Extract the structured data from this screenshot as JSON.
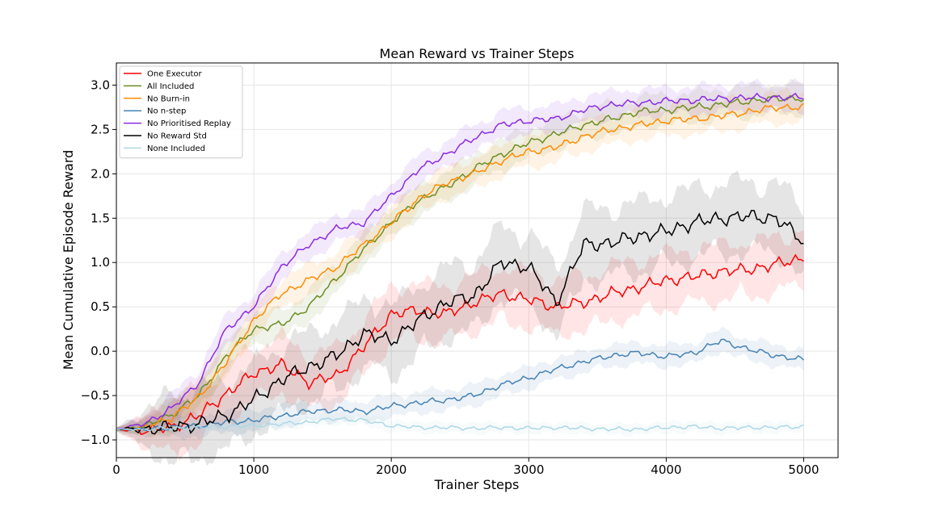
{
  "chart_data": {
    "type": "line",
    "title": "Mean Reward vs Trainer Steps",
    "xlabel": "Trainer Steps",
    "ylabel": "Mean Cumulative Episode Reward",
    "xlim": [
      0,
      5250
    ],
    "ylim": [
      -1.2,
      3.25
    ],
    "xticks": [
      0,
      1000,
      2000,
      3000,
      4000,
      5000
    ],
    "yticks": [
      -1.0,
      -0.5,
      0.0,
      0.5,
      1.0,
      1.5,
      2.0,
      2.5,
      3.0
    ],
    "grid": true,
    "legend_position": "top-left",
    "series": [
      {
        "name": "One Executor",
        "color": "#ff0000",
        "band": 0.35,
        "x": [
          0,
          200,
          400,
          600,
          800,
          1000,
          1200,
          1400,
          1600,
          1800,
          2000,
          2200,
          2400,
          2600,
          2800,
          3000,
          3200,
          3400,
          3600,
          3800,
          4000,
          4200,
          4400,
          4600,
          4800,
          5000
        ],
        "y": [
          -0.88,
          -0.9,
          -0.86,
          -0.72,
          -0.48,
          -0.25,
          -0.15,
          -0.35,
          -0.28,
          0.05,
          0.42,
          0.46,
          0.42,
          0.55,
          0.65,
          0.58,
          0.5,
          0.55,
          0.65,
          0.72,
          0.8,
          0.84,
          0.9,
          0.92,
          0.98,
          1.05
        ]
      },
      {
        "name": "All Included",
        "color": "#6b8e23",
        "band": 0.18,
        "x": [
          0,
          200,
          400,
          600,
          800,
          1000,
          1200,
          1400,
          1600,
          1800,
          2000,
          2200,
          2400,
          2600,
          2800,
          3000,
          3200,
          3400,
          3600,
          3800,
          4000,
          4200,
          4400,
          4600,
          4800,
          5000
        ],
        "y": [
          -0.88,
          -0.85,
          -0.72,
          -0.5,
          -0.05,
          0.25,
          0.3,
          0.5,
          0.82,
          1.15,
          1.45,
          1.7,
          1.85,
          2.05,
          2.22,
          2.35,
          2.45,
          2.55,
          2.62,
          2.7,
          2.72,
          2.75,
          2.78,
          2.82,
          2.85,
          2.85
        ]
      },
      {
        "name": "No Burn-in",
        "color": "#ff8c00",
        "band": 0.18,
        "x": [
          0,
          200,
          400,
          600,
          800,
          1000,
          1200,
          1400,
          1600,
          1800,
          2000,
          2200,
          2400,
          2600,
          2800,
          3000,
          3200,
          3400,
          3600,
          3800,
          4000,
          4200,
          4400,
          4600,
          4800,
          5000
        ],
        "y": [
          -0.88,
          -0.86,
          -0.75,
          -0.52,
          -0.12,
          0.35,
          0.65,
          0.8,
          0.95,
          1.2,
          1.45,
          1.72,
          1.9,
          2.0,
          2.15,
          2.25,
          2.3,
          2.42,
          2.5,
          2.55,
          2.6,
          2.62,
          2.65,
          2.7,
          2.75,
          2.75
        ]
      },
      {
        "name": "No n-step",
        "color": "#4682b4",
        "band": 0.12,
        "x": [
          0,
          200,
          400,
          600,
          800,
          1000,
          1200,
          1400,
          1600,
          1800,
          2000,
          2200,
          2400,
          2600,
          2800,
          3000,
          3200,
          3400,
          3600,
          3800,
          4000,
          4200,
          4400,
          4600,
          4800,
          5000
        ],
        "y": [
          -0.88,
          -0.88,
          -0.86,
          -0.84,
          -0.8,
          -0.78,
          -0.73,
          -0.68,
          -0.66,
          -0.68,
          -0.62,
          -0.58,
          -0.55,
          -0.5,
          -0.38,
          -0.3,
          -0.2,
          -0.12,
          -0.05,
          -0.02,
          -0.06,
          -0.02,
          0.12,
          0.02,
          -0.05,
          -0.1
        ]
      },
      {
        "name": "No Prioritised Replay",
        "color": "#8a2be2",
        "band": 0.16,
        "x": [
          0,
          200,
          400,
          600,
          800,
          1000,
          1200,
          1400,
          1600,
          1800,
          2000,
          2200,
          2400,
          2600,
          2800,
          3000,
          3200,
          3400,
          3600,
          3800,
          4000,
          4200,
          4400,
          4600,
          4800,
          5000
        ],
        "y": [
          -0.88,
          -0.82,
          -0.65,
          -0.35,
          0.25,
          0.5,
          0.95,
          1.2,
          1.38,
          1.45,
          1.75,
          2.05,
          2.22,
          2.4,
          2.55,
          2.6,
          2.62,
          2.72,
          2.78,
          2.8,
          2.82,
          2.83,
          2.85,
          2.86,
          2.86,
          2.86
        ]
      },
      {
        "name": "No Reward Std",
        "color": "#000000",
        "band": 0.45,
        "x": [
          0,
          200,
          400,
          600,
          800,
          1000,
          1200,
          1400,
          1600,
          1800,
          2000,
          2200,
          2400,
          2600,
          2800,
          3000,
          3200,
          3400,
          3600,
          3800,
          4000,
          4200,
          4400,
          4600,
          4800,
          5000
        ],
        "y": [
          -0.88,
          -0.88,
          -0.86,
          -0.82,
          -0.72,
          -0.55,
          -0.32,
          -0.18,
          -0.05,
          0.2,
          0.12,
          0.35,
          0.55,
          0.62,
          1.0,
          0.95,
          0.55,
          1.2,
          1.22,
          1.3,
          1.35,
          1.45,
          1.5,
          1.52,
          1.5,
          1.24
        ]
      },
      {
        "name": "None Included",
        "color": "#add8e6",
        "band": 0.05,
        "x": [
          0,
          200,
          400,
          600,
          800,
          1000,
          1200,
          1400,
          1600,
          1800,
          2000,
          2200,
          2400,
          2600,
          2800,
          3000,
          3200,
          3400,
          3600,
          3800,
          4000,
          4200,
          4400,
          4600,
          4800,
          5000
        ],
        "y": [
          -0.88,
          -0.88,
          -0.87,
          -0.86,
          -0.85,
          -0.84,
          -0.82,
          -0.8,
          -0.76,
          -0.78,
          -0.84,
          -0.86,
          -0.86,
          -0.87,
          -0.86,
          -0.87,
          -0.86,
          -0.87,
          -0.88,
          -0.88,
          -0.86,
          -0.85,
          -0.87,
          -0.86,
          -0.86,
          -0.85
        ]
      }
    ]
  }
}
